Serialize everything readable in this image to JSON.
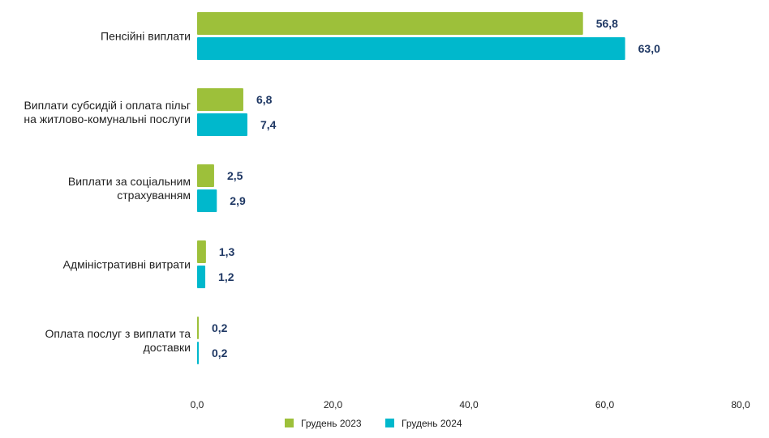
{
  "chart_data": {
    "type": "bar",
    "orientation": "horizontal",
    "categories": [
      [
        "Пенсійні виплати"
      ],
      [
        "Виплати субсидій і оплата пільг",
        "на житлово-комунальні послуги"
      ],
      [
        "Виплати за соціальним",
        "страхуванням"
      ],
      [
        "Адміністративні витрати"
      ],
      [
        "Оплата послуг з виплати та",
        "доставки"
      ]
    ],
    "series": [
      {
        "name": "Грудень 2023",
        "color": "#9dc03a",
        "values": [
          56.8,
          6.8,
          2.5,
          1.3,
          0.2
        ],
        "labels": [
          "56,8",
          "6,8",
          "2,5",
          "1,3",
          "0,2"
        ]
      },
      {
        "name": "Грудень 2024",
        "color": "#00b8cc",
        "values": [
          63.0,
          7.4,
          2.9,
          1.2,
          0.2
        ],
        "labels": [
          "63,0",
          "7,4",
          "2,9",
          "1,2",
          "0,2"
        ]
      }
    ],
    "xlim": [
      0,
      80
    ],
    "xticks": [
      0,
      20,
      40,
      60,
      80
    ],
    "xtick_labels": [
      "0,0",
      "20,0",
      "40,0",
      "60,0",
      "80,0"
    ],
    "grid": false,
    "legend_position": "bottom"
  }
}
